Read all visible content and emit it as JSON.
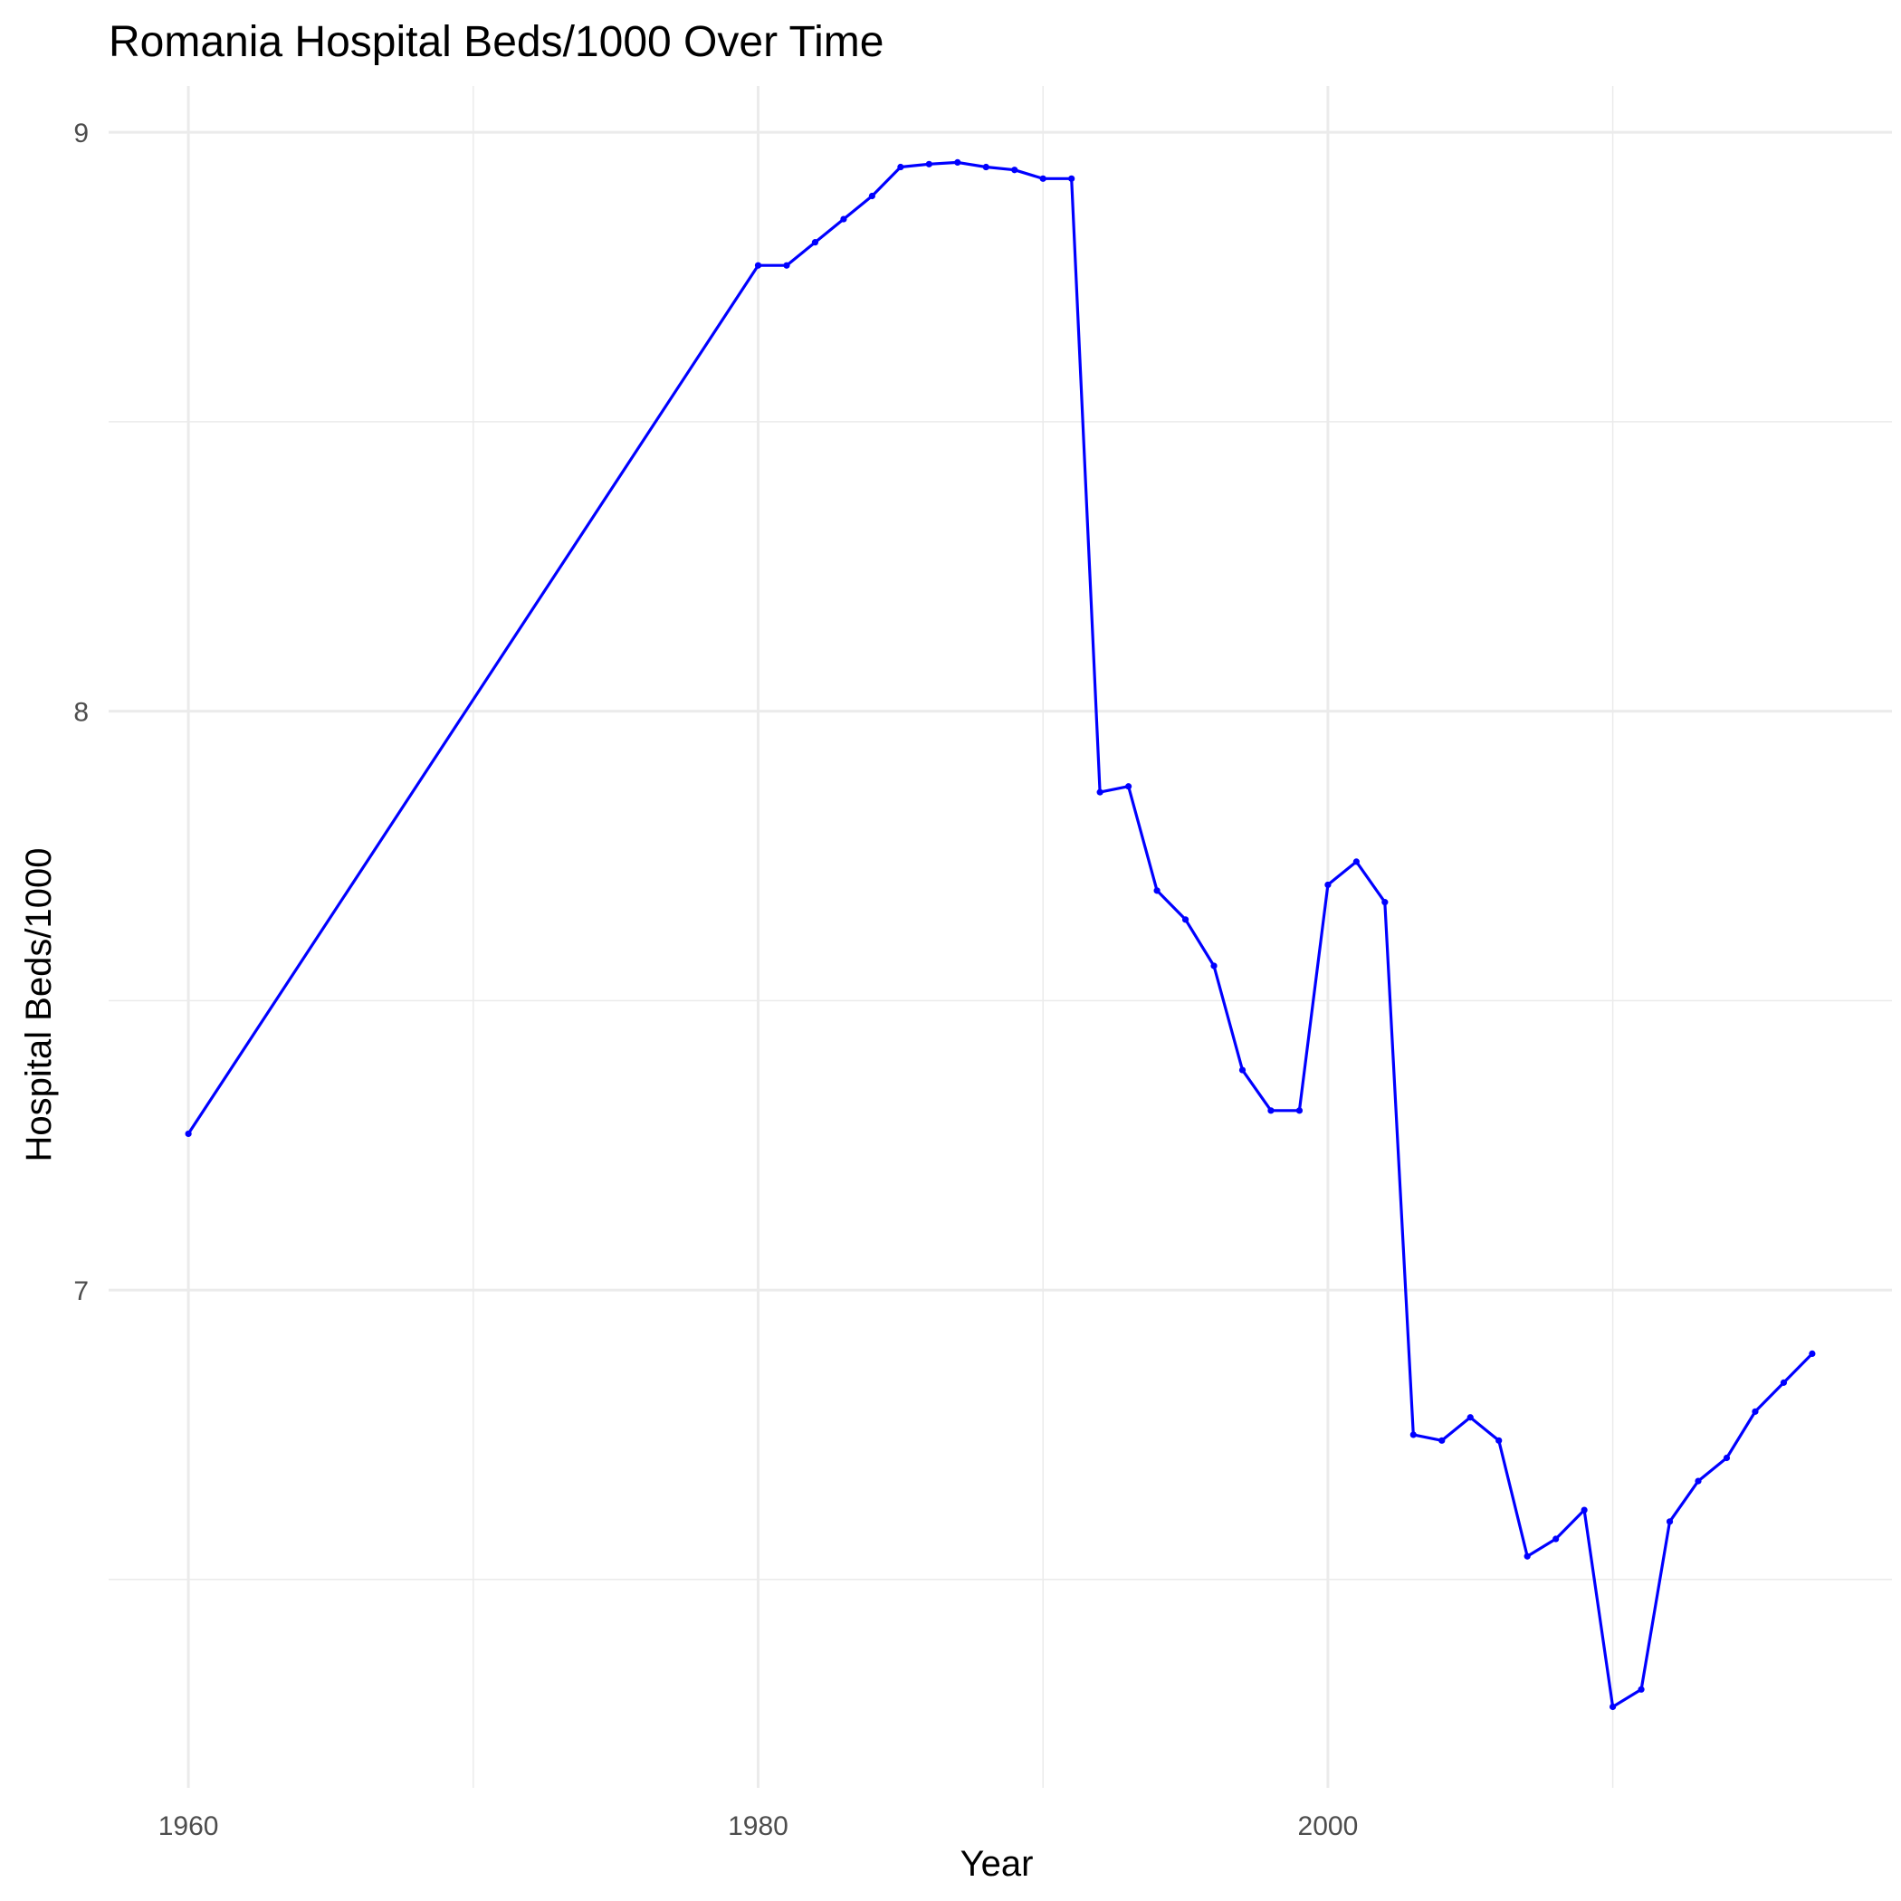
{
  "chart_data": {
    "type": "line",
    "title": "Romania Hospital Beds/1000 Over Time",
    "xlabel": "Year",
    "ylabel": "Hospital Beds/1000",
    "xlim": [
      1957.2,
      2019.8
    ],
    "ylim": [
      6.14,
      9.08
    ],
    "x_ticks": [
      1960,
      1980,
      2000
    ],
    "x_tick_labels": [
      "1960",
      "1980",
      "2000"
    ],
    "x_minor_ticks": [
      1970,
      1990,
      2010
    ],
    "y_ticks": [
      7,
      8,
      9
    ],
    "y_tick_labels": [
      "7",
      "8",
      "9"
    ],
    "y_minor_ticks": [
      6.5,
      7.5,
      8.5
    ],
    "grid": true,
    "legend": "none",
    "series": [
      {
        "color": "#0000ff",
        "x": [
          1960,
          1980,
          1981,
          1982,
          1983,
          1984,
          1985,
          1986,
          1987,
          1988,
          1989,
          1990,
          1991,
          1992,
          1993,
          1994,
          1995,
          1996,
          1997,
          1998,
          1999,
          2000,
          2001,
          2002,
          2003,
          2004,
          2005,
          2006,
          2007,
          2008,
          2009,
          2010,
          2011,
          2012,
          2013,
          2014,
          2015,
          2016,
          2017
        ],
        "y": [
          7.27,
          8.77,
          8.77,
          8.81,
          8.85,
          8.89,
          8.94,
          8.945,
          8.948,
          8.94,
          8.935,
          8.92,
          8.92,
          7.86,
          7.87,
          7.69,
          7.64,
          7.56,
          7.38,
          7.31,
          7.31,
          7.7,
          7.74,
          7.67,
          6.75,
          6.74,
          6.78,
          6.74,
          6.54,
          6.57,
          6.62,
          6.28,
          6.31,
          6.6,
          6.67,
          6.71,
          6.79,
          6.84,
          6.89
        ]
      }
    ]
  }
}
